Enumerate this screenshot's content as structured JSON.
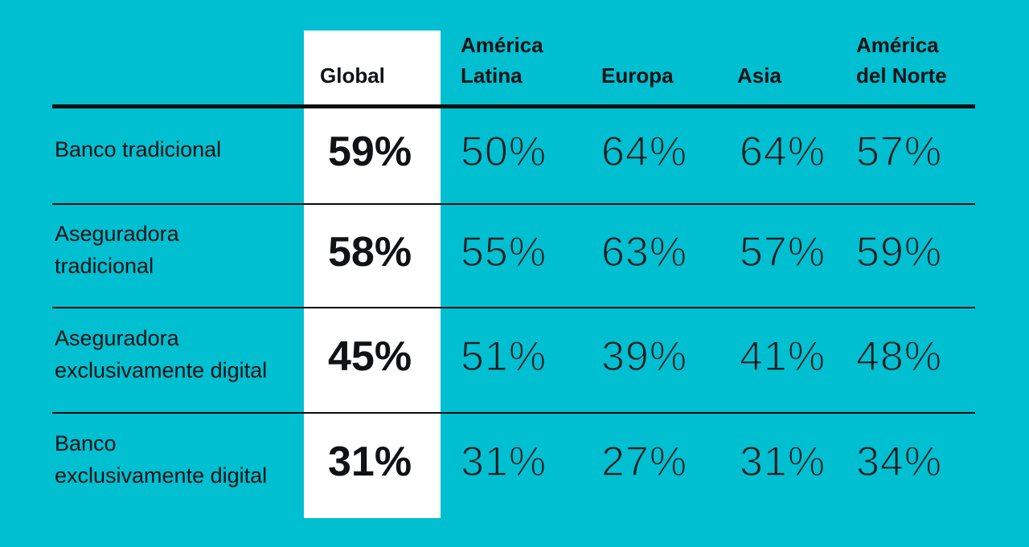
{
  "colors": {
    "background": "#00BFD1",
    "highlight_column": "#FFFFFF",
    "text": "#101214",
    "rule": "#0D0D0D"
  },
  "table": {
    "columns": [
      {
        "id": "global",
        "lines": [
          "Global"
        ],
        "highlighted": true
      },
      {
        "id": "america-latina",
        "lines": [
          "América",
          "Latina"
        ]
      },
      {
        "id": "europa",
        "lines": [
          "Europa"
        ]
      },
      {
        "id": "asia",
        "lines": [
          "Asia"
        ]
      },
      {
        "id": "america-del-norte",
        "lines": [
          "América",
          "del Norte"
        ]
      }
    ],
    "rows": [
      {
        "label_lines": [
          "Banco tradicional",
          ""
        ],
        "global": "59%",
        "values": [
          "50%",
          "64%",
          "64%",
          "57%"
        ]
      },
      {
        "label_lines": [
          "Aseguradora",
          "tradicional"
        ],
        "global": "58%",
        "values": [
          "55%",
          "63%",
          "57%",
          "59%"
        ]
      },
      {
        "label_lines": [
          "Aseguradora",
          "exclusivamente digital"
        ],
        "global": "45%",
        "values": [
          "51%",
          "39%",
          "41%",
          "48%"
        ]
      },
      {
        "label_lines": [
          "Banco",
          "exclusivamente digital"
        ],
        "global": "31%",
        "values": [
          "31%",
          "27%",
          "31%",
          "34%"
        ]
      }
    ]
  },
  "chart_data": {
    "type": "table",
    "unit": "%",
    "categories": [
      "Global",
      "América Latina",
      "Europa",
      "Asia",
      "América del Norte"
    ],
    "series": [
      {
        "name": "Banco tradicional",
        "values": [
          59,
          50,
          64,
          64,
          57
        ]
      },
      {
        "name": "Aseguradora tradicional",
        "values": [
          58,
          55,
          63,
          57,
          59
        ]
      },
      {
        "name": "Aseguradora exclusivamente digital",
        "values": [
          45,
          51,
          39,
          41,
          48
        ]
      },
      {
        "name": "Banco exclusivamente digital",
        "values": [
          31,
          31,
          27,
          31,
          34
        ]
      }
    ],
    "layout": {
      "highlighted_column": "Global",
      "grid": "horizontal-rules-only",
      "legend": "none"
    }
  }
}
